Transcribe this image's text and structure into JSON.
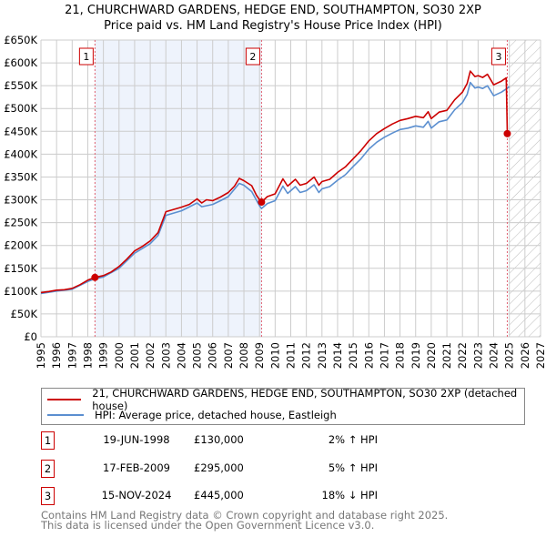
{
  "title": "21, CHURCHWARD GARDENS, HEDGE END, SOUTHAMPTON, SO30 2XP",
  "subtitle": "Price paid vs. HM Land Registry's House Price Index (HPI)",
  "colors": {
    "price": "#cc0000",
    "hpi": "#5b8fd0",
    "shade": "#eef3fc",
    "grid": "#cccccc"
  },
  "chart_data": {
    "type": "line",
    "xlim": [
      1995,
      2027
    ],
    "ylim": [
      0,
      650000
    ],
    "grid": true,
    "x_ticks": [
      "1995",
      "1996",
      "1997",
      "1998",
      "1999",
      "2000",
      "2001",
      "2002",
      "2003",
      "2004",
      "2005",
      "2006",
      "2007",
      "2008",
      "2009",
      "2010",
      "2011",
      "2012",
      "2013",
      "2014",
      "2015",
      "2016",
      "2017",
      "2018",
      "2019",
      "2020",
      "2021",
      "2022",
      "2023",
      "2024",
      "2025",
      "2026",
      "2027"
    ],
    "y_ticks": [
      {
        "value": 0,
        "label": "£0"
      },
      {
        "value": 50000,
        "label": "£50K"
      },
      {
        "value": 100000,
        "label": "£100K"
      },
      {
        "value": 150000,
        "label": "£150K"
      },
      {
        "value": 200000,
        "label": "£200K"
      },
      {
        "value": 250000,
        "label": "£250K"
      },
      {
        "value": 300000,
        "label": "£300K"
      },
      {
        "value": 350000,
        "label": "£350K"
      },
      {
        "value": 400000,
        "label": "£400K"
      },
      {
        "value": 450000,
        "label": "£450K"
      },
      {
        "value": 500000,
        "label": "£500K"
      },
      {
        "value": 550000,
        "label": "£550K"
      },
      {
        "value": 600000,
        "label": "£600K"
      },
      {
        "value": 650000,
        "label": "£650K"
      }
    ],
    "shaded_range": [
      1998.46,
      2009.13
    ],
    "forecast_hatch_from": 2025.0,
    "series": [
      {
        "name": "21, CHURCHWARD GARDENS, HEDGE END, SOUTHAMPTON, SO30 2XP (detached house)",
        "color": "#cc0000",
        "x": [
          1995,
          1995.5,
          1996,
          1996.5,
          1997,
          1997.5,
          1998,
          1998.46,
          1999,
          1999.5,
          2000,
          2000.5,
          2001,
          2001.5,
          2002,
          2002.5,
          2003,
          2003.5,
          2004,
          2004.5,
          2005,
          2005.3,
          2005.6,
          2006,
          2006.5,
          2007,
          2007.4,
          2007.7,
          2008,
          2008.5,
          2008.8,
          2009,
          2009.13,
          2009.5,
          2010,
          2010.5,
          2010.8,
          2011,
          2011.3,
          2011.6,
          2012,
          2012.5,
          2012.8,
          2013,
          2013.5,
          2014,
          2014.5,
          2015,
          2015.5,
          2016,
          2016.5,
          2017,
          2017.5,
          2018,
          2018.5,
          2019,
          2019.5,
          2019.8,
          2020,
          2020.5,
          2021,
          2021.5,
          2022,
          2022.3,
          2022.5,
          2022.8,
          2023,
          2023.3,
          2023.6,
          2024,
          2024.5,
          2024.8,
          2024.87
        ],
        "y": [
          97000,
          99000,
          102000,
          103000,
          106000,
          114000,
          124000,
          130000,
          134000,
          142000,
          154000,
          170000,
          188000,
          198000,
          210000,
          228000,
          274000,
          279000,
          284000,
          290000,
          302000,
          293000,
          300000,
          298000,
          306000,
          316000,
          330000,
          347000,
          342000,
          331000,
          310000,
          300000,
          295000,
          307000,
          313000,
          346000,
          330000,
          336000,
          345000,
          332000,
          336000,
          350000,
          332000,
          340000,
          345000,
          360000,
          372000,
          390000,
          408000,
          429000,
          445000,
          456000,
          466000,
          474000,
          478000,
          483000,
          480000,
          493000,
          478000,
          492000,
          496000,
          519000,
          536000,
          555000,
          582000,
          570000,
          572000,
          568000,
          575000,
          552000,
          560000,
          567000,
          445000
        ]
      },
      {
        "name": "HPI: Average price, detached house, Eastleigh",
        "color": "#5b8fd0",
        "x": [
          1995,
          1996,
          1997,
          1998,
          1998.46,
          1999,
          2000,
          2001,
          2002,
          2002.5,
          2003,
          2004,
          2005,
          2005.3,
          2006,
          2006.5,
          2007,
          2007.7,
          2008,
          2008.5,
          2009,
          2009.13,
          2009.5,
          2010,
          2010.5,
          2010.8,
          2011,
          2011.3,
          2011.6,
          2012,
          2012.5,
          2012.8,
          2013,
          2013.5,
          2014,
          2014.5,
          2015,
          2015.5,
          2016,
          2016.5,
          2017,
          2017.5,
          2018,
          2018.5,
          2019,
          2019.5,
          2019.8,
          2020,
          2020.5,
          2021,
          2021.5,
          2022,
          2022.3,
          2022.5,
          2022.8,
          2023,
          2023.3,
          2023.6,
          2024,
          2024.5,
          2024.8,
          2025
        ],
        "y": [
          95000,
          100000,
          104000,
          121000,
          127000,
          131000,
          150000,
          183000,
          204000,
          222000,
          266000,
          276000,
          293000,
          285000,
          290000,
          298000,
          307000,
          336000,
          332000,
          318000,
          287000,
          281000,
          292000,
          298000,
          330000,
          314000,
          320000,
          329000,
          316000,
          320000,
          333000,
          316000,
          324000,
          329000,
          343000,
          355000,
          373000,
          390000,
          411000,
          426000,
          437000,
          446000,
          454000,
          457000,
          462000,
          459000,
          472000,
          457000,
          471000,
          475000,
          497000,
          513000,
          531000,
          557000,
          545000,
          547000,
          544000,
          550000,
          528000,
          536000,
          543000,
          548000
        ]
      }
    ],
    "sales": [
      {
        "label": "1",
        "x": 1998.46,
        "price": 130000,
        "date": "19-JUN-1998",
        "price_text": "£130,000",
        "hpi_text": "2% ↑ HPI"
      },
      {
        "label": "2",
        "x": 2009.13,
        "price": 295000,
        "date": "17-FEB-2009",
        "price_text": "£295,000",
        "hpi_text": "5% ↑ HPI"
      },
      {
        "label": "3",
        "x": 2024.87,
        "price": 445000,
        "date": "15-NOV-2024",
        "price_text": "£445,000",
        "hpi_text": "18% ↓ HPI"
      }
    ]
  },
  "legend": {
    "price_label": "21, CHURCHWARD GARDENS, HEDGE END, SOUTHAMPTON, SO30 2XP (detached house)",
    "hpi_label": "HPI: Average price, detached house, Eastleigh"
  },
  "footer": {
    "line1": "Contains HM Land Registry data © Crown copyright and database right 2025.",
    "line2": "This data is licensed under the Open Government Licence v3.0."
  }
}
